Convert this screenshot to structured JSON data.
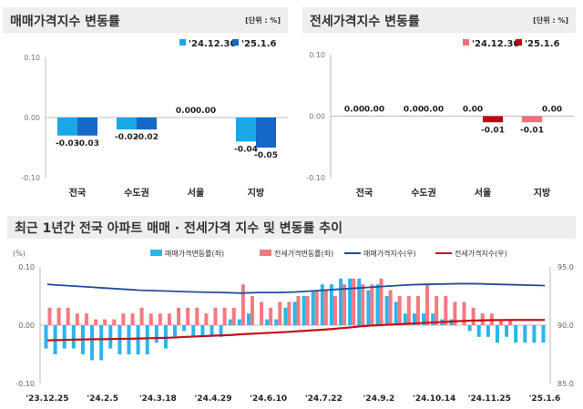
{
  "chart_data": [
    {
      "type": "bar",
      "title": "매매가격지수 변동률",
      "unit": "[단위 : %]",
      "categories": [
        "전국",
        "수도권",
        "서울",
        "지방"
      ],
      "series": [
        {
          "name": "'24.12.30",
          "values": [
            -0.03,
            -0.02,
            0.0,
            -0.04
          ],
          "color": "#1aa7e6"
        },
        {
          "name": "'25.1.6",
          "values": [
            -0.03,
            -0.02,
            0.0,
            -0.05
          ],
          "color": "#1568c8"
        }
      ],
      "ylim": [
        -0.1,
        0.1
      ],
      "yticks": [
        "0.10",
        "0.00",
        "-0.10"
      ],
      "legend": "top-right"
    },
    {
      "type": "bar",
      "title": "전세가격지수 변동률",
      "unit": "[단위 : %]",
      "categories": [
        "전국",
        "수도권",
        "서울",
        "지방"
      ],
      "series": [
        {
          "name": "'24.12.30",
          "values": [
            0.0,
            0.0,
            0.0,
            -0.01
          ],
          "color": "#f0707a"
        },
        {
          "name": "'25.1.6",
          "values": [
            0.0,
            0.0,
            -0.01,
            0.0
          ],
          "color": "#c00010"
        }
      ],
      "ylim": [
        -0.1,
        0.1
      ],
      "yticks": [
        "0.10",
        "0.00",
        "-0.10"
      ],
      "legend": "top-right"
    },
    {
      "type": "bar+line",
      "title": "최근 1년간 전국 아파트 매매 · 전세가격 지수 및 변동률 추이",
      "ylabel_left": "(%)",
      "ylim_left": [
        -0.1,
        0.1
      ],
      "yticks_left": [
        "0.10",
        "0.00",
        "-0.10"
      ],
      "ylim_right": [
        85.0,
        95.0
      ],
      "yticks_right": [
        "95.0",
        "90.0",
        "85.0"
      ],
      "xticks": [
        "'23.12.25",
        "'24.2.5",
        "'24.3.18",
        "'24.4.29",
        "'24.6.10",
        "'24.7.22",
        "'24.9.2",
        "'24.10.14",
        "'24.11.25",
        "'25.1.6"
      ],
      "legend": "top",
      "series": [
        {
          "name": "매매가격변동률(좌)",
          "type": "bar",
          "color": "#2bb5ea",
          "values": [
            -0.04,
            -0.05,
            -0.04,
            -0.04,
            -0.05,
            -0.06,
            -0.06,
            -0.04,
            -0.05,
            -0.05,
            -0.05,
            -0.05,
            -0.03,
            -0.04,
            -0.02,
            -0.01,
            -0.02,
            -0.02,
            -0.02,
            -0.02,
            0.01,
            0.01,
            0.02,
            0.0,
            0.01,
            0.01,
            0.03,
            0.04,
            0.05,
            0.06,
            0.07,
            0.07,
            0.08,
            0.08,
            0.08,
            0.06,
            0.07,
            0.05,
            0.04,
            0.02,
            0.02,
            0.02,
            0.02,
            0.01,
            0.01,
            0.0,
            -0.01,
            -0.02,
            -0.02,
            -0.03,
            -0.02,
            -0.03,
            -0.03,
            -0.03,
            -0.03
          ]
        },
        {
          "name": "전세가격변동률(좌)",
          "type": "bar",
          "color": "#f47a82",
          "values": [
            0.03,
            0.03,
            0.03,
            0.02,
            0.02,
            0.01,
            0.01,
            0.01,
            0.02,
            0.02,
            0.03,
            0.02,
            0.02,
            0.02,
            0.03,
            0.03,
            0.03,
            0.02,
            0.03,
            0.03,
            0.03,
            0.07,
            0.05,
            0.04,
            0.03,
            0.04,
            0.04,
            0.05,
            0.05,
            0.06,
            0.06,
            0.05,
            0.07,
            0.08,
            0.07,
            0.07,
            0.08,
            0.06,
            0.05,
            0.05,
            0.05,
            0.07,
            0.05,
            0.05,
            0.04,
            0.04,
            0.03,
            0.02,
            0.02,
            0.01,
            0.01,
            0.0,
            0.0,
            0.0,
            0.0
          ]
        },
        {
          "name": "매매가격지수(우)",
          "type": "line",
          "color": "#1f4e9c",
          "values": [
            93.5,
            93.45,
            93.4,
            93.35,
            93.3,
            93.25,
            93.2,
            93.15,
            93.1,
            93.05,
            93.0,
            92.98,
            92.95,
            92.93,
            92.9,
            92.87,
            92.85,
            92.83,
            92.82,
            92.8,
            92.78,
            92.75,
            92.78,
            92.8,
            92.8,
            92.8,
            92.82,
            92.85,
            92.9,
            92.95,
            93.0,
            93.05,
            93.1,
            93.15,
            93.2,
            93.25,
            93.3,
            93.35,
            93.4,
            93.45,
            93.48,
            93.5,
            93.52,
            93.53,
            93.55,
            93.56,
            93.56,
            93.55,
            93.52,
            93.5,
            93.48,
            93.46,
            93.44,
            93.42,
            93.4
          ]
        },
        {
          "name": "전세가격지수(우)",
          "type": "line",
          "color": "#c0141c",
          "values": [
            88.7,
            88.72,
            88.74,
            88.76,
            88.78,
            88.8,
            88.8,
            88.82,
            88.83,
            88.84,
            88.86,
            88.88,
            88.9,
            88.92,
            88.95,
            89.0,
            89.03,
            89.06,
            89.1,
            89.13,
            89.16,
            89.22,
            89.26,
            89.3,
            89.34,
            89.38,
            89.42,
            89.47,
            89.52,
            89.57,
            89.62,
            89.68,
            89.75,
            89.82,
            89.9,
            89.96,
            90.0,
            90.04,
            90.08,
            90.12,
            90.16,
            90.2,
            90.24,
            90.28,
            90.32,
            90.36,
            90.39,
            90.41,
            90.43,
            90.44,
            90.45,
            90.45,
            90.45,
            90.45,
            90.45
          ]
        }
      ]
    }
  ]
}
